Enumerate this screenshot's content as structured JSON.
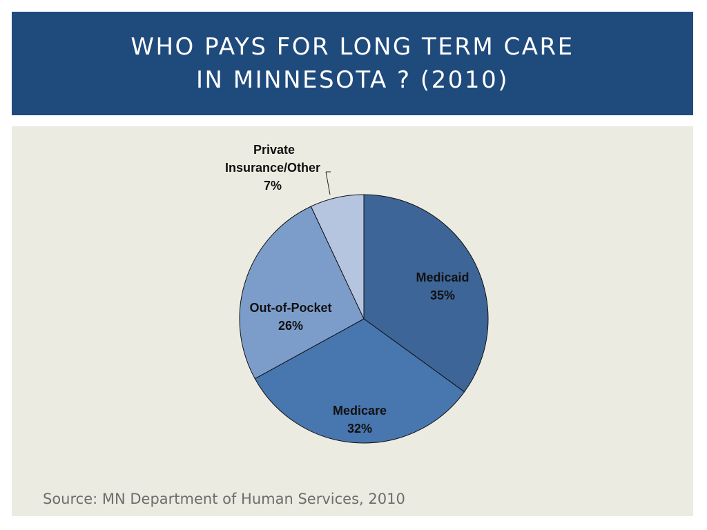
{
  "header": {
    "title_line1": "WHO PAYS FOR LONG TERM CARE",
    "title_line2": "IN MINNESOTA ? (2010)"
  },
  "chart_data": {
    "type": "pie",
    "slices": [
      {
        "label": "Medicaid",
        "value": 35,
        "value_label": "35%",
        "color": "#3d6597"
      },
      {
        "label": "Medicare",
        "value": 32,
        "value_label": "32%",
        "color": "#4876ae"
      },
      {
        "label": "Out-of-Pocket",
        "value": 26,
        "value_label": "26%",
        "color": "#7c9dc9"
      },
      {
        "label": "Private Insurance/Other",
        "label_lines": [
          "Private",
          "Insurance/Other"
        ],
        "value": 7,
        "value_label": "7%",
        "color": "#b5c5e0"
      }
    ],
    "start_angle": "top, clockwise"
  },
  "source": "Source: MN Department of Human Services, 2010",
  "colors": {
    "header_bg": "#1f4a7c",
    "panel_bg": "#ecebe1"
  }
}
